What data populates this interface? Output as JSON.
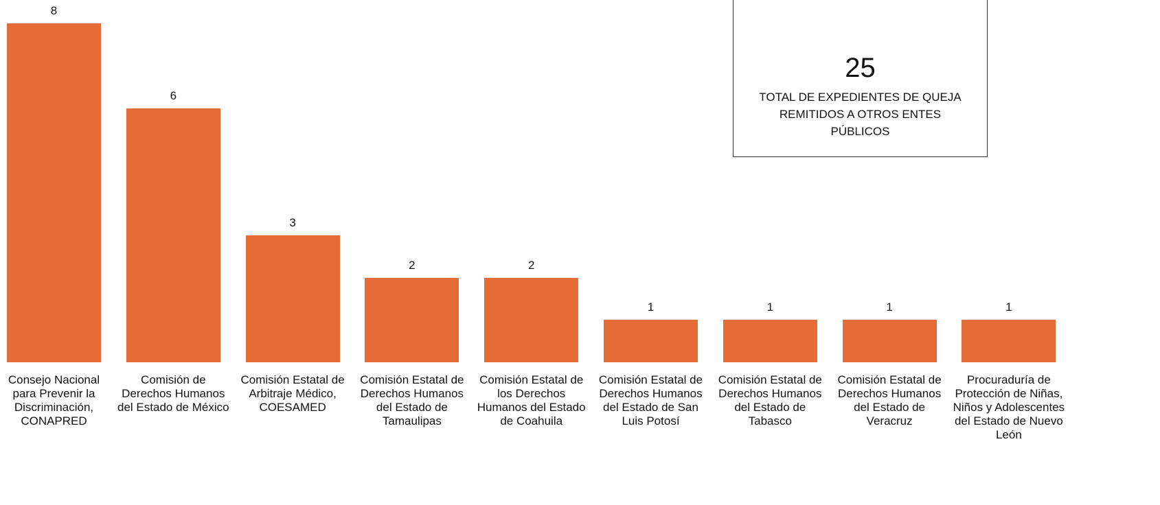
{
  "chart_data": {
    "type": "bar",
    "categories": [
      "Consejo Nacional para Prevenir la Discriminación, CONAPRED",
      "Comisión de Derechos Humanos del Estado de México",
      "Comisión Estatal de Arbitraje Médico, COESAMED",
      "Comisión Estatal de Derechos Humanos del Estado de Tamaulipas",
      "Comisión Estatal de los Derechos Humanos del Estado de Coahuila",
      "Comisión Estatal de Derechos Humanos del Estado de San Luis Potosí",
      "Comisión Estatal de Derechos Humanos del Estado de Tabasco",
      "Comisión Estatal de Derechos Humanos del Estado de Veracruz",
      "Procuraduría de Protección de Niñas, Niños y Adolescentes del Estado de Nuevo León"
    ],
    "values": [
      8,
      6,
      3,
      2,
      2,
      1,
      1,
      1,
      1
    ],
    "color": "#e46c36",
    "annotation": {
      "value": 25,
      "text": "TOTAL DE EXPEDIENTES DE QUEJA REMITIDOS A OTROS ENTES PÚBLICOS"
    }
  }
}
